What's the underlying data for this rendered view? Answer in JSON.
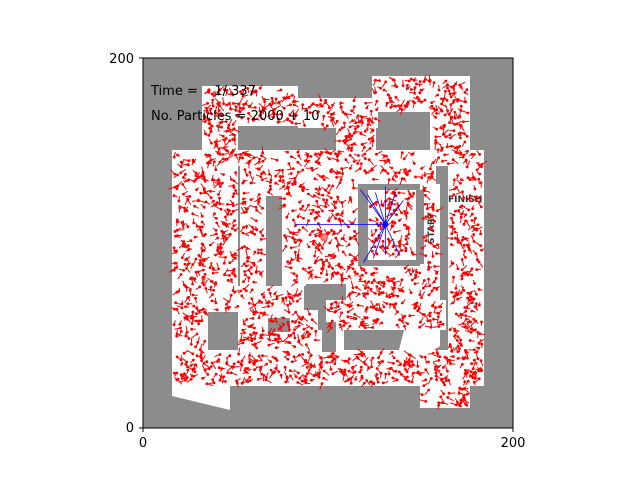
{
  "chart_data": {
    "type": "scatter",
    "xlim": [
      0,
      200
    ],
    "ylim": [
      0,
      200
    ],
    "x_ticks": [
      "0",
      "200"
    ],
    "y_ticks": [
      "0",
      "200"
    ],
    "grid": false,
    "info": {
      "time_label": "Time =    1/ 337",
      "particles_label": "No. Particles = 2000 + 10"
    },
    "maze_labels": {
      "start": "START",
      "finish": "FINISH"
    },
    "robot": {
      "x": 131,
      "y": 110,
      "rays": 11,
      "ray_color": "#0000ff"
    },
    "estimate": {
      "x": 98,
      "y": 103
    },
    "particles": {
      "count": 2000,
      "color": "#ff0000"
    },
    "colors": {
      "wall": "#8c8c8c",
      "floor": "#ffffff",
      "frame": "#000000"
    }
  }
}
